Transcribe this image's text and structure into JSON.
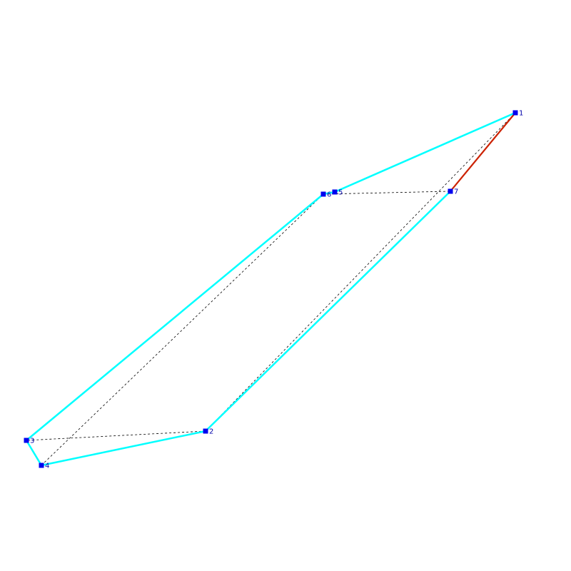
{
  "colors": {
    "background": "#ffffff",
    "outline": "#00ffff",
    "highlight_edge": "#cc2200",
    "dashed": "#000000",
    "vertex": "#0000ee",
    "label": "#0000aa"
  },
  "vertices": [
    {
      "id": "1",
      "label": "1"
    },
    {
      "id": "2",
      "label": "2"
    },
    {
      "id": "3",
      "label": "3"
    },
    {
      "id": "4",
      "label": "4"
    },
    {
      "id": "5",
      "label": "5"
    },
    {
      "id": "6",
      "label": "6"
    },
    {
      "id": "7",
      "label": "7"
    }
  ],
  "edges": {
    "outline": [
      [
        "1",
        "5"
      ],
      [
        "5",
        "6"
      ],
      [
        "6",
        "3"
      ],
      [
        "3",
        "4"
      ],
      [
        "4",
        "2"
      ],
      [
        "2",
        "7"
      ]
    ],
    "highlight": [
      [
        "7",
        "1"
      ]
    ],
    "dashed": [
      [
        "1",
        "2"
      ],
      [
        "2",
        "3"
      ],
      [
        "4",
        "6"
      ],
      [
        "6",
        "7"
      ]
    ]
  }
}
